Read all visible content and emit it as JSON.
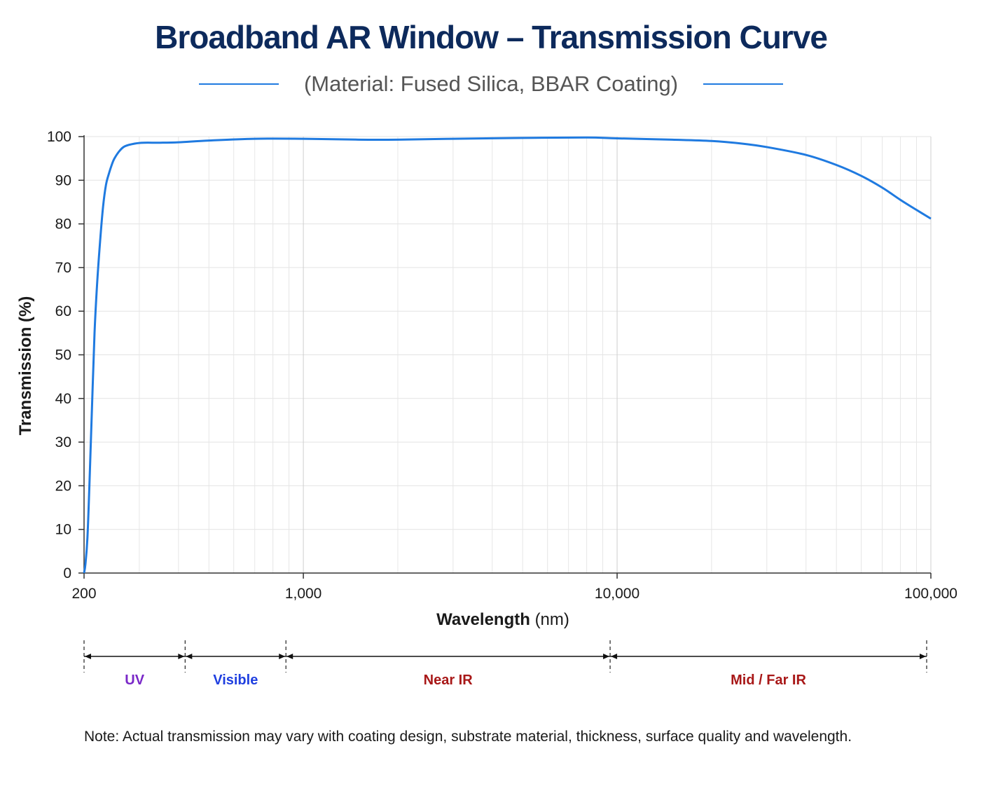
{
  "chart_data": {
    "type": "line",
    "title": "Broadband AR Window – Transmission Curve",
    "subtitle": "(Material: Fused Silica, BBAR Coating)",
    "xlabel": "Wavelength",
    "xlabel_unit": "(nm)",
    "ylabel": "Transmission (%)",
    "x_scale": "log",
    "xlim": [
      200,
      100000
    ],
    "ylim": [
      0,
      100
    ],
    "grid": true,
    "x_tick_labels": [
      "200",
      "1,000",
      "10,000",
      "100,000"
    ],
    "x_tick_values": [
      200,
      1000,
      10000,
      100000
    ],
    "y_ticks": [
      0,
      10,
      20,
      30,
      40,
      50,
      60,
      70,
      80,
      90,
      100
    ],
    "series": [
      {
        "color": "#1f7ae0",
        "x": [
          200,
          202,
          205,
          208,
          212,
          216,
          220,
          225,
          230,
          235,
          240,
          245,
          250,
          260,
          270,
          290,
          310,
          350,
          400,
          500,
          700,
          1000,
          1500,
          2000,
          3000,
          5000,
          8000,
          10000,
          15000,
          20000,
          25000,
          30000,
          40000,
          50000,
          60000,
          70000,
          80000,
          90000,
          100000
        ],
        "y": [
          0,
          2,
          8,
          20,
          38,
          55,
          66,
          76,
          84,
          89,
          91.5,
          93.5,
          95,
          96.8,
          97.8,
          98.4,
          98.6,
          98.6,
          98.7,
          99.1,
          99.5,
          99.5,
          99.3,
          99.3,
          99.5,
          99.7,
          99.8,
          99.6,
          99.3,
          99,
          98.4,
          97.6,
          95.8,
          93.5,
          91,
          88.3,
          85.5,
          83.2,
          81.2
        ]
      }
    ],
    "regions": [
      {
        "label": "UV",
        "color": "#7a28c8",
        "from": 200,
        "to": 420
      },
      {
        "label": "Visible",
        "color": "#1f3fe0",
        "from": 420,
        "to": 880
      },
      {
        "label": "Near IR",
        "color": "#a81818",
        "from": 880,
        "to": 9500
      },
      {
        "label": "Mid / Far IR",
        "color": "#a81818",
        "from": 9500,
        "to": 100000
      }
    ]
  },
  "note": "Note: Actual transmission may vary with coating design, substrate material, thickness, surface quality and wavelength."
}
